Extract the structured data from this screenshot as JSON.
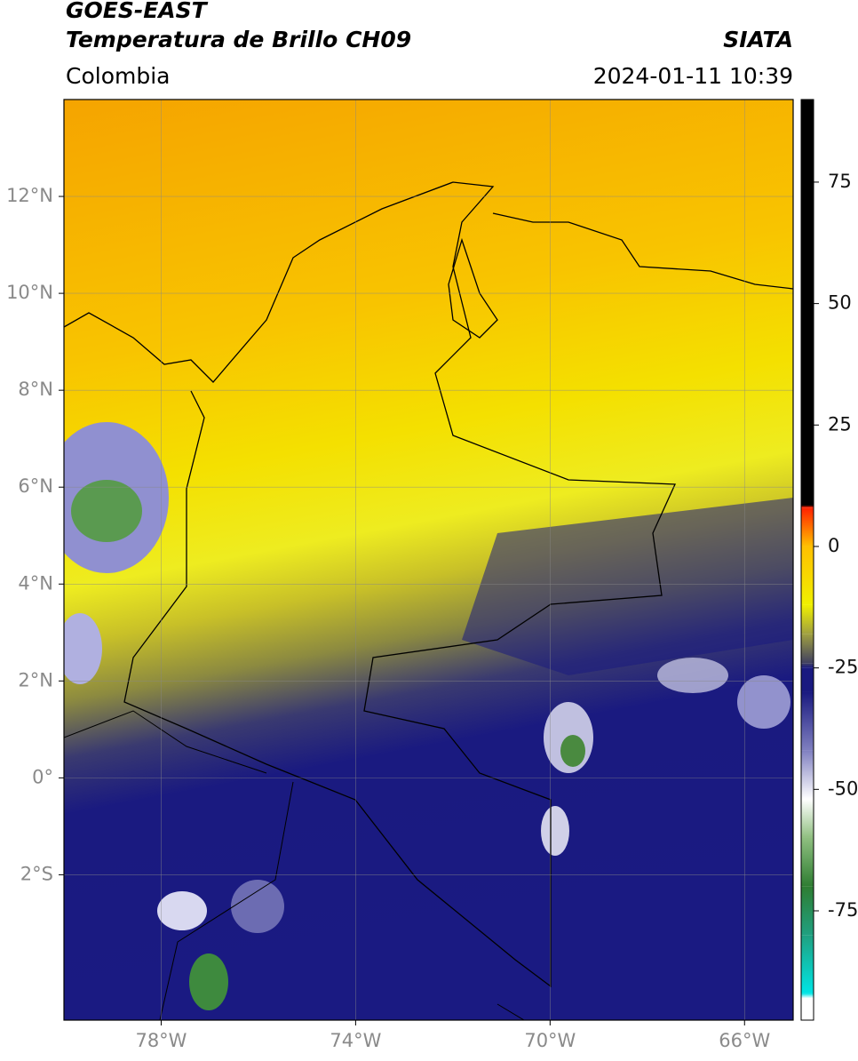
{
  "header": {
    "title": "GOES-EAST",
    "subtitle": "Temperatura de Brillo CH09",
    "source": "SIATA",
    "region": "Colombia",
    "datetime": "2024-01-11 10:39"
  },
  "map": {
    "xlim": [
      -80,
      -65
    ],
    "ylim": [
      -5,
      14
    ],
    "xticks": [
      {
        "value": -78,
        "label": "78°W"
      },
      {
        "value": -74,
        "label": "74°W"
      },
      {
        "value": -70,
        "label": "70°W"
      },
      {
        "value": -66,
        "label": "66°W"
      }
    ],
    "yticks": [
      {
        "value": 12,
        "label": "12°N"
      },
      {
        "value": 10,
        "label": "10°N"
      },
      {
        "value": 8,
        "label": "8°N"
      },
      {
        "value": 6,
        "label": "6°N"
      },
      {
        "value": 4,
        "label": "4°N"
      },
      {
        "value": 2,
        "label": "2°N"
      },
      {
        "value": 0,
        "label": "0°"
      },
      {
        "value": -2,
        "label": "2°S"
      }
    ],
    "grid": true
  },
  "colorbar": {
    "lim": [
      -97.5,
      92
    ],
    "ticks": [
      75,
      50,
      25,
      0,
      -25,
      -50,
      -75
    ],
    "stops": [
      {
        "value": -97.5,
        "color": "#ffffff"
      },
      {
        "value": -93,
        "color": "#ffffff"
      },
      {
        "value": -92,
        "color": "#00e5e5"
      },
      {
        "value": -80,
        "color": "#20a080"
      },
      {
        "value": -70,
        "color": "#2e7d32"
      },
      {
        "value": -60,
        "color": "#8fbf80"
      },
      {
        "value": -52,
        "color": "#ffffff"
      },
      {
        "value": -42,
        "color": "#8080c0"
      },
      {
        "value": -30,
        "color": "#1a1a80"
      },
      {
        "value": -25,
        "color": "#1a1a80"
      },
      {
        "value": -24,
        "color": "#404060"
      },
      {
        "value": -18,
        "color": "#a0a040"
      },
      {
        "value": -12,
        "color": "#f0f000"
      },
      {
        "value": 0,
        "color": "#ffc000"
      },
      {
        "value": 8,
        "color": "#ff2000"
      },
      {
        "value": 8.5,
        "color": "#000000"
      },
      {
        "value": 92,
        "color": "#000000"
      }
    ]
  }
}
